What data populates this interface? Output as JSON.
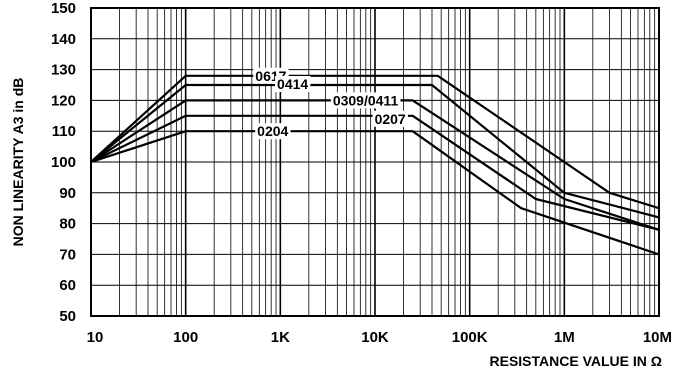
{
  "chart_data": {
    "type": "line",
    "title": "",
    "xlabel": "RESISTANCE VALUE IN Ω",
    "ylabel": "NON LINEARITY A3 in dB",
    "x_scale": "log",
    "xlim": [
      10,
      10000000
    ],
    "ylim": [
      50,
      150
    ],
    "x_ticks": [
      {
        "value": 10,
        "label": "10"
      },
      {
        "value": 100,
        "label": "100"
      },
      {
        "value": 1000,
        "label": "1K"
      },
      {
        "value": 10000,
        "label": "10K"
      },
      {
        "value": 100000,
        "label": "100K"
      },
      {
        "value": 1000000,
        "label": "1M"
      },
      {
        "value": 10000000,
        "label": "10M"
      }
    ],
    "y_ticks": [
      50,
      60,
      70,
      80,
      90,
      100,
      110,
      120,
      130,
      140,
      150
    ],
    "grid": true,
    "series": [
      {
        "name": "0617",
        "color": "#000000",
        "x": [
          10,
          100,
          46000,
          1000000,
          3000000,
          10000000
        ],
        "y": [
          100,
          128,
          128,
          100,
          90,
          85
        ]
      },
      {
        "name": "0414",
        "color": "#000000",
        "x": [
          10,
          100,
          40000,
          1000000,
          10000000
        ],
        "y": [
          100,
          125,
          125,
          90,
          82
        ]
      },
      {
        "name": "0309/0411",
        "color": "#000000",
        "x": [
          10,
          100,
          25000,
          1000000,
          10000000
        ],
        "y": [
          100,
          120,
          120,
          88,
          78
        ]
      },
      {
        "name": "0207",
        "color": "#000000",
        "x": [
          10,
          100,
          25000,
          500000,
          10000000
        ],
        "y": [
          100,
          115,
          115,
          88,
          78
        ]
      },
      {
        "name": "0204",
        "color": "#000000",
        "x": [
          10,
          100,
          25000,
          350000,
          10000000
        ],
        "y": [
          100,
          110,
          110,
          85,
          70
        ]
      }
    ]
  }
}
